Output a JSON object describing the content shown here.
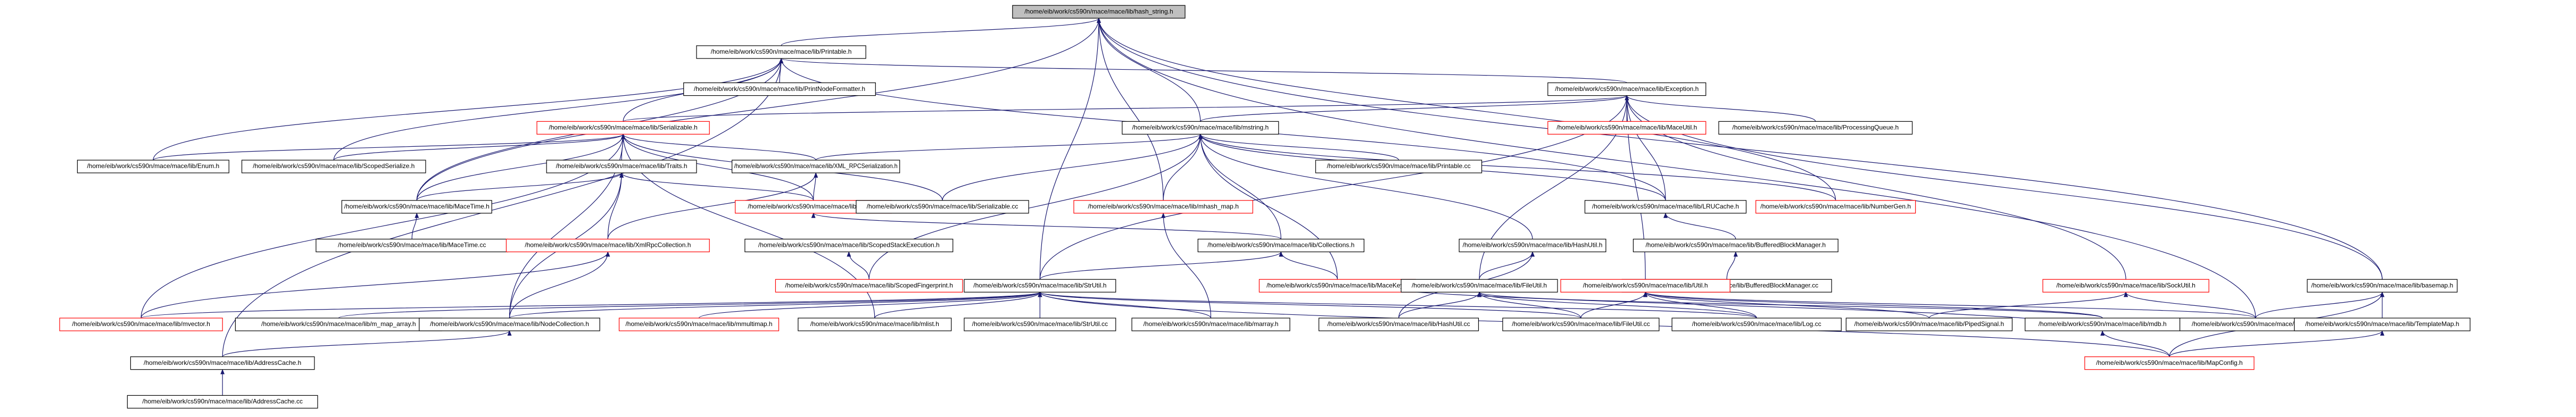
{
  "nodes": [
    {
      "label": "/home/eib/work/cs590n/mace/mace/lib/hash_string.h"
    },
    {
      "label": "/home/eib/work/cs590n/mace/mace/lib/Printable.h"
    },
    {
      "label": "/home/eib/work/cs590n/mace/mace/lib/PrintNodeFormatter.h"
    },
    {
      "label": "/home/eib/work/cs590n/mace/mace/lib/Exception.h"
    },
    {
      "label": "/home/eib/work/cs590n/mace/mace/lib/Serializable.h"
    },
    {
      "label": "/home/eib/work/cs590n/mace/mace/lib/mstring.h"
    },
    {
      "label": "/home/eib/work/cs590n/mace/mace/lib/MaceUtil.h"
    },
    {
      "label": "/home/eib/work/cs590n/mace/mace/lib/ProcessingQueue.h"
    },
    {
      "label": "/home/eib/work/cs590n/mace/mace/lib/Enum.h"
    },
    {
      "label": "/home/eib/work/cs590n/mace/mace/lib/ScopedSerialize.h"
    },
    {
      "label": "/home/eib/work/cs590n/mace/mace/lib/Traits.h"
    },
    {
      "label": "/home/eib/work/cs590n/mace/mace/lib/XML_RPCSerialization.h"
    },
    {
      "label": "/home/eib/work/cs590n/mace/mace/lib/Printable.cc"
    },
    {
      "label": "/home/eib/work/cs590n/mace/mace/lib/MaceTime.h"
    },
    {
      "label": "/home/eib/work/cs590n/mace/mace/lib/mpair.h"
    },
    {
      "label": "/home/eib/work/cs590n/mace/mace/lib/mhash_map.h"
    },
    {
      "label": "/home/eib/work/cs590n/mace/mace/lib/Serializable.cc"
    },
    {
      "label": "/home/eib/work/cs590n/mace/mace/lib/LRUCache.h"
    },
    {
      "label": "/home/eib/work/cs590n/mace/mace/lib/NumberGen.h"
    },
    {
      "label": "/home/eib/work/cs590n/mace/mace/lib/MaceTime.cc"
    },
    {
      "label": "/home/eib/work/cs590n/mace/mace/lib/XmlRpcCollection.h"
    },
    {
      "label": "/home/eib/work/cs590n/mace/mace/lib/ScopedStackExecution.h"
    },
    {
      "label": "/home/eib/work/cs590n/mace/mace/lib/Collections.h"
    },
    {
      "label": "/home/eib/work/cs590n/mace/mace/lib/HashUtil.h"
    },
    {
      "label": "/home/eib/work/cs590n/mace/mace/lib/BufferedBlockManager.h"
    },
    {
      "label": "/home/eib/work/cs590n/mace/mace/lib/ScopedFingerprint.h"
    },
    {
      "label": "/home/eib/work/cs590n/mace/mace/lib/StrUtil.h"
    },
    {
      "label": "/home/eib/work/cs590n/mace/mace/lib/MaceKey.h"
    },
    {
      "label": "/home/eib/work/cs590n/mace/mace/lib/FileUtil.h"
    },
    {
      "label": "/home/eib/work/cs590n/mace/mace/lib/BufferedBlockManager.cc"
    },
    {
      "label": "/home/eib/work/cs590n/mace/mace/lib/Util.h"
    },
    {
      "label": "/home/eib/work/cs590n/mace/mace/lib/SockUtil.h"
    },
    {
      "label": "/home/eib/work/cs590n/mace/mace/lib/basemap.h"
    },
    {
      "label": "/home/eib/work/cs590n/mace/mace/lib/mvector.h"
    },
    {
      "label": "/home/eib/work/cs590n/mace/mace/lib/m_map_array.h"
    },
    {
      "label": "/home/eib/work/cs590n/mace/mace/lib/NodeCollection.h"
    },
    {
      "label": "/home/eib/work/cs590n/mace/mace/lib/mmultimap.h"
    },
    {
      "label": "/home/eib/work/cs590n/mace/mace/lib/mlist.h"
    },
    {
      "label": "/home/eib/work/cs590n/mace/mace/lib/StrUtil.cc"
    },
    {
      "label": "/home/eib/work/cs590n/mace/mace/lib/marray.h"
    },
    {
      "label": "/home/eib/work/cs590n/mace/mace/lib/HashUtil.cc"
    },
    {
      "label": "/home/eib/work/cs590n/mace/mace/lib/FileUtil.cc"
    },
    {
      "label": "/home/eib/work/cs590n/mace/mace/lib/Log.cc"
    },
    {
      "label": "/home/eib/work/cs590n/mace/mace/lib/PipedSignal.h"
    },
    {
      "label": "/home/eib/work/cs590n/mace/mace/lib/mdb.h"
    },
    {
      "label": "/home/eib/work/cs590n/mace/mace/lib/Util.cc"
    },
    {
      "label": "/home/eib/work/cs590n/mace/mace/lib/TemplateMap.h"
    },
    {
      "label": "/home/eib/work/cs590n/mace/mace/lib/AddressCache.h"
    },
    {
      "label": "/home/eib/work/cs590n/mace/mace/lib/MapConfig.h"
    },
    {
      "label": "/home/eib/work/cs590n/mace/mace/lib/AddressCache.cc"
    }
  ]
}
